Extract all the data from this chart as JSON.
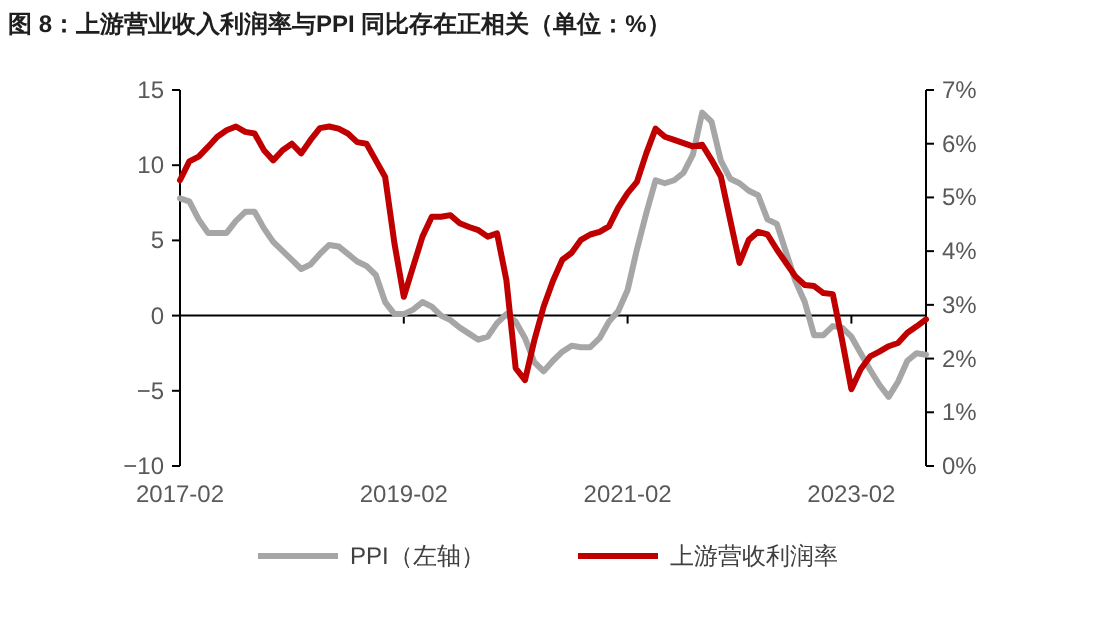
{
  "chart_data": {
    "type": "line",
    "title": "图 8：上游营业收入利润率与PPI 同比存在正相关（单位：%）",
    "x": [
      "2017-02",
      "2017-03",
      "2017-04",
      "2017-05",
      "2017-06",
      "2017-07",
      "2017-08",
      "2017-09",
      "2017-10",
      "2017-11",
      "2017-12",
      "2018-01",
      "2018-02",
      "2018-03",
      "2018-04",
      "2018-05",
      "2018-06",
      "2018-07",
      "2018-08",
      "2018-09",
      "2018-10",
      "2018-11",
      "2018-12",
      "2019-01",
      "2019-02",
      "2019-03",
      "2019-04",
      "2019-05",
      "2019-06",
      "2019-07",
      "2019-08",
      "2019-09",
      "2019-10",
      "2019-11",
      "2019-12",
      "2020-01",
      "2020-02",
      "2020-03",
      "2020-04",
      "2020-05",
      "2020-06",
      "2020-07",
      "2020-08",
      "2020-09",
      "2020-10",
      "2020-11",
      "2020-12",
      "2021-01",
      "2021-02",
      "2021-03",
      "2021-04",
      "2021-05",
      "2021-06",
      "2021-07",
      "2021-08",
      "2021-09",
      "2021-10",
      "2021-11",
      "2021-12",
      "2022-01",
      "2022-02",
      "2022-03",
      "2022-04",
      "2022-05",
      "2022-06",
      "2022-07",
      "2022-08",
      "2022-09",
      "2022-10",
      "2022-11",
      "2022-12",
      "2023-01",
      "2023-02",
      "2023-03",
      "2023-04",
      "2023-05",
      "2023-06",
      "2023-07",
      "2023-08",
      "2023-09",
      "2023-10"
    ],
    "series": [
      {
        "name": "PPI（左轴）",
        "color": "#a6a6a6",
        "values": [
          7.8,
          7.6,
          6.4,
          5.5,
          5.5,
          5.5,
          6.3,
          6.9,
          6.9,
          5.8,
          4.9,
          4.3,
          3.7,
          3.1,
          3.4,
          4.1,
          4.7,
          4.6,
          4.1,
          3.6,
          3.3,
          2.7,
          0.9,
          0.1,
          0.1,
          0.4,
          0.9,
          0.6,
          0.0,
          -0.3,
          -0.8,
          -1.2,
          -1.6,
          -1.4,
          -0.5,
          0.1,
          -0.4,
          -1.5,
          -3.1,
          -3.7,
          -3.0,
          -2.4,
          -2.0,
          -2.1,
          -2.1,
          -1.5,
          -0.4,
          0.3,
          1.7,
          4.4,
          6.8,
          9.0,
          8.8,
          9.0,
          9.5,
          10.7,
          13.5,
          12.9,
          10.3,
          9.1,
          8.8,
          8.3,
          8.0,
          6.4,
          6.1,
          4.2,
          2.3,
          0.9,
          -1.3,
          -1.3,
          -0.7,
          -0.8,
          -1.4,
          -2.5,
          -3.6,
          -4.6,
          -5.4,
          -4.4,
          -3.0,
          -2.5,
          -2.6
        ]
      },
      {
        "name": "上游营收利润率",
        "color": "#c00000",
        "axis": "y2",
        "values": [
          5.32,
          5.67,
          5.76,
          5.94,
          6.13,
          6.25,
          6.32,
          6.22,
          6.19,
          5.88,
          5.69,
          5.88,
          6.0,
          5.82,
          6.07,
          6.29,
          6.32,
          6.28,
          6.19,
          6.03,
          6.0,
          5.69,
          5.38,
          4.14,
          3.15,
          3.71,
          4.27,
          4.64,
          4.64,
          4.67,
          4.52,
          4.45,
          4.39,
          4.27,
          4.33,
          3.46,
          1.82,
          1.6,
          2.34,
          2.97,
          3.45,
          3.84,
          3.97,
          4.21,
          4.31,
          4.36,
          4.46,
          4.81,
          5.08,
          5.29,
          5.82,
          6.28,
          6.13,
          6.07,
          6.01,
          5.95,
          5.98,
          5.7,
          5.39,
          4.58,
          3.78,
          4.21,
          4.36,
          4.31,
          4.03,
          3.78,
          3.53,
          3.37,
          3.35,
          3.22,
          3.2,
          2.35,
          1.43,
          1.8,
          2.04,
          2.13,
          2.23,
          2.29,
          2.48,
          2.6,
          2.73
        ]
      }
    ],
    "xlim": [
      "2017-02",
      "2023-10"
    ],
    "xticks": [
      "2017-02",
      "2019-02",
      "2021-02",
      "2023-02"
    ],
    "ylim": [
      -10,
      15
    ],
    "yticks": [
      -10,
      -5,
      0,
      5,
      10,
      15
    ],
    "y2lim": [
      0,
      7
    ],
    "y2ticks": [
      {
        "value": 0,
        "label": "0%"
      },
      {
        "value": 1,
        "label": "1%"
      },
      {
        "value": 2,
        "label": "2%"
      },
      {
        "value": 3,
        "label": "3%"
      },
      {
        "value": 4,
        "label": "4%"
      },
      {
        "value": 5,
        "label": "5%"
      },
      {
        "value": 6,
        "label": "6%"
      },
      {
        "value": 7,
        "label": "7%"
      }
    ],
    "legend": "bottom"
  }
}
